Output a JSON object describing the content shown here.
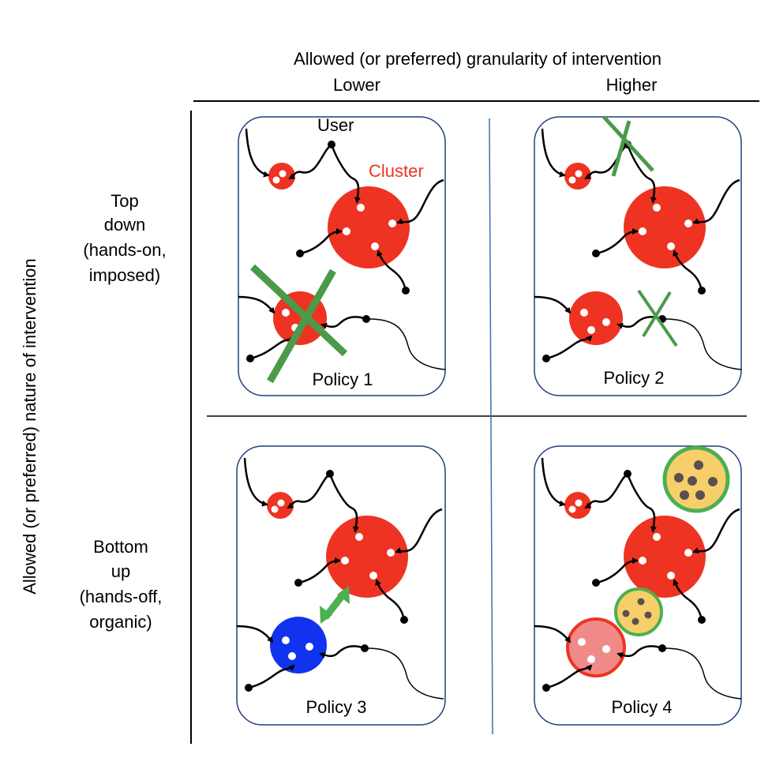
{
  "header": {
    "title": "Allowed (or preferred) granularity of intervention",
    "col_lower": "Lower",
    "col_higher": "Higher"
  },
  "side": {
    "title": "Allowed (or preferred) nature of intervention",
    "top_line1": "Top",
    "top_line2": "down",
    "top_line3": "(hands-on,",
    "top_line4": "imposed)",
    "bottom_line1": "Bottom",
    "bottom_line2": "up",
    "bottom_line3": "(hands-off,",
    "bottom_line4": "organic)"
  },
  "panels": {
    "p1": {
      "label": "Policy 1",
      "user_label": "User",
      "cluster_label": "Cluster"
    },
    "p2": {
      "label": "Policy 2"
    },
    "p3": {
      "label": "Policy 3"
    },
    "p4": {
      "label": "Policy 4"
    }
  },
  "colors": {
    "cluster": "#ee3322",
    "blue_cluster": "#1133ee",
    "pink_cluster": "#f08a88",
    "cross_green": "#4a9a4a",
    "arrow_green": "#4caf50",
    "panel_border": "#1f3f7a",
    "divider_blue": "#3a6fb0",
    "yellow_fill": "#f7cf6a",
    "dot_gray": "#5a5050"
  }
}
